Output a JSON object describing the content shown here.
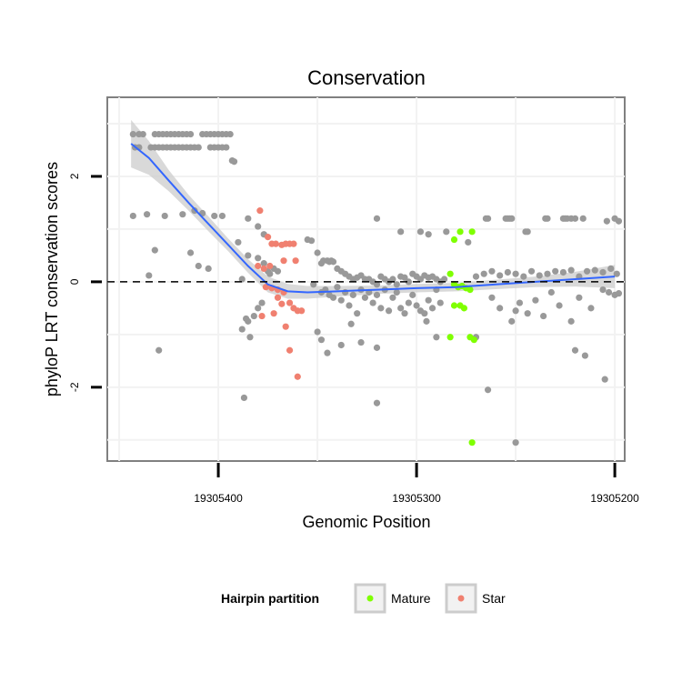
{
  "chart_data": {
    "type": "scatter",
    "title": "Conservation",
    "xlabel": "Genomic Position",
    "ylabel": "phyloP LRT conservation scores",
    "x_reversed": true,
    "xlim": [
      19305456,
      19305195
    ],
    "ylim": [
      -3.4,
      3.5
    ],
    "x_ticks": [
      19305400,
      19305300,
      19305200
    ],
    "y_ticks": [
      -2,
      0,
      2
    ],
    "grid": true,
    "reference_line_y": 0,
    "legend": {
      "title": "Hairpin partition",
      "placement": "bottom",
      "entries": [
        {
          "label": "Mature",
          "color": "#7fff00"
        },
        {
          "label": "Star",
          "color": "#f08070"
        }
      ]
    },
    "colors": {
      "other": "#999999",
      "mature": "#7fff00",
      "star": "#f08070",
      "smooth_line": "#3366ff",
      "ribbon": "#cccccc"
    },
    "series": [
      {
        "group": "other",
        "points": [
          [
            19305443,
            2.8
          ],
          [
            19305440,
            2.8
          ],
          [
            19305438,
            2.8
          ],
          [
            19305432,
            2.8
          ],
          [
            19305430,
            2.8
          ],
          [
            19305428,
            2.8
          ],
          [
            19305426,
            2.8
          ],
          [
            19305424,
            2.8
          ],
          [
            19305422,
            2.8
          ],
          [
            19305420,
            2.8
          ],
          [
            19305418,
            2.8
          ],
          [
            19305416,
            2.8
          ],
          [
            19305414,
            2.8
          ],
          [
            19305408,
            2.8
          ],
          [
            19305406,
            2.8
          ],
          [
            19305404,
            2.8
          ],
          [
            19305402,
            2.8
          ],
          [
            19305400,
            2.8
          ],
          [
            19305398,
            2.8
          ],
          [
            19305396,
            2.8
          ],
          [
            19305394,
            2.8
          ],
          [
            19305442,
            2.55
          ],
          [
            19305440,
            2.55
          ],
          [
            19305434,
            2.55
          ],
          [
            19305432,
            2.55
          ],
          [
            19305430,
            2.55
          ],
          [
            19305428,
            2.55
          ],
          [
            19305426,
            2.55
          ],
          [
            19305424,
            2.55
          ],
          [
            19305422,
            2.55
          ],
          [
            19305420,
            2.55
          ],
          [
            19305418,
            2.55
          ],
          [
            19305416,
            2.55
          ],
          [
            19305414,
            2.55
          ],
          [
            19305412,
            2.55
          ],
          [
            19305410,
            2.55
          ],
          [
            19305404,
            2.55
          ],
          [
            19305402,
            2.55
          ],
          [
            19305400,
            2.55
          ],
          [
            19305398,
            2.55
          ],
          [
            19305396,
            2.55
          ],
          [
            19305393,
            2.3
          ],
          [
            19305392,
            2.28
          ],
          [
            19305443,
            1.25
          ],
          [
            19305436,
            1.28
          ],
          [
            19305427,
            1.25
          ],
          [
            19305418,
            1.28
          ],
          [
            19305412,
            1.35
          ],
          [
            19305408,
            1.3
          ],
          [
            19305402,
            1.25
          ],
          [
            19305398,
            1.25
          ],
          [
            19305385,
            1.2
          ],
          [
            19305380,
            1.05
          ],
          [
            19305377,
            0.9
          ],
          [
            19305432,
            0.6
          ],
          [
            19305414,
            0.55
          ],
          [
            19305390,
            0.75
          ],
          [
            19305385,
            0.5
          ],
          [
            19305380,
            0.45
          ],
          [
            19305377,
            0.35
          ],
          [
            19305375,
            0.2
          ],
          [
            19305374,
            0.15
          ],
          [
            19305410,
            0.3
          ],
          [
            19305405,
            0.25
          ],
          [
            19305435,
            0.12
          ],
          [
            19305372,
            0.25
          ],
          [
            19305370,
            0.2
          ],
          [
            19305388,
            0.05
          ],
          [
            19305388,
            -0.9
          ],
          [
            19305386,
            -0.7
          ],
          [
            19305385,
            -0.75
          ],
          [
            19305384,
            -1.05
          ],
          [
            19305382,
            -0.65
          ],
          [
            19305380,
            -0.5
          ],
          [
            19305378,
            -0.4
          ],
          [
            19305430,
            -1.3
          ],
          [
            19305387,
            -2.2
          ],
          [
            19305355,
            0.8
          ],
          [
            19305353,
            0.78
          ],
          [
            19305350,
            0.55
          ],
          [
            19305348,
            0.35
          ],
          [
            19305347,
            0.4
          ],
          [
            19305345,
            0.4
          ],
          [
            19305344,
            0.38
          ],
          [
            19305343,
            0.4
          ],
          [
            19305342,
            0.38
          ],
          [
            19305340,
            0.25
          ],
          [
            19305338,
            0.2
          ],
          [
            19305336,
            0.15
          ],
          [
            19305334,
            0.1
          ],
          [
            19305332,
            0.05
          ],
          [
            19305330,
            0.08
          ],
          [
            19305328,
            0.12
          ],
          [
            19305326,
            0.05
          ],
          [
            19305324,
            0.05
          ],
          [
            19305322,
            0.0
          ],
          [
            19305320,
            -0.05
          ],
          [
            19305318,
            0.1
          ],
          [
            19305316,
            0.05
          ],
          [
            19305314,
            0.0
          ],
          [
            19305312,
            0.05
          ],
          [
            19305310,
            -0.05
          ],
          [
            19305308,
            0.1
          ],
          [
            19305306,
            0.08
          ],
          [
            19305304,
            0.0
          ],
          [
            19305302,
            0.15
          ],
          [
            19305300,
            0.1
          ],
          [
            19305298,
            0.05
          ],
          [
            19305296,
            0.12
          ],
          [
            19305294,
            0.08
          ],
          [
            19305292,
            0.1
          ],
          [
            19305290,
            0.05
          ],
          [
            19305288,
            0.0
          ],
          [
            19305286,
            0.05
          ],
          [
            19305320,
            1.2
          ],
          [
            19305308,
            0.95
          ],
          [
            19305298,
            0.95
          ],
          [
            19305294,
            0.9
          ],
          [
            19305285,
            0.95
          ],
          [
            19305274,
            0.75
          ],
          [
            19305352,
            -0.05
          ],
          [
            19305348,
            -0.2
          ],
          [
            19305346,
            -0.15
          ],
          [
            19305344,
            -0.25
          ],
          [
            19305342,
            -0.3
          ],
          [
            19305340,
            -0.1
          ],
          [
            19305338,
            -0.35
          ],
          [
            19305336,
            -0.2
          ],
          [
            19305334,
            -0.45
          ],
          [
            19305332,
            -0.25
          ],
          [
            19305330,
            -0.6
          ],
          [
            19305328,
            -0.15
          ],
          [
            19305326,
            -0.3
          ],
          [
            19305324,
            -0.2
          ],
          [
            19305322,
            -0.4
          ],
          [
            19305320,
            -0.25
          ],
          [
            19305318,
            -0.5
          ],
          [
            19305316,
            -0.15
          ],
          [
            19305314,
            -0.55
          ],
          [
            19305312,
            -0.3
          ],
          [
            19305310,
            -0.2
          ],
          [
            19305308,
            -0.5
          ],
          [
            19305306,
            -0.6
          ],
          [
            19305304,
            -0.4
          ],
          [
            19305302,
            -0.25
          ],
          [
            19305300,
            -0.45
          ],
          [
            19305298,
            -0.55
          ],
          [
            19305296,
            -0.6
          ],
          [
            19305294,
            -0.35
          ],
          [
            19305292,
            -0.5
          ],
          [
            19305290,
            -0.15
          ],
          [
            19305288,
            -0.4
          ],
          [
            19305350,
            -0.95
          ],
          [
            19305348,
            -1.1
          ],
          [
            19305345,
            -1.35
          ],
          [
            19305338,
            -1.2
          ],
          [
            19305333,
            -0.8
          ],
          [
            19305328,
            -1.15
          ],
          [
            19305320,
            -1.25
          ],
          [
            19305295,
            -0.75
          ],
          [
            19305290,
            -1.05
          ],
          [
            19305320,
            -2.3
          ],
          [
            19305265,
            1.2
          ],
          [
            19305264,
            1.2
          ],
          [
            19305255,
            1.2
          ],
          [
            19305254,
            1.2
          ],
          [
            19305253,
            1.2
          ],
          [
            19305252,
            1.2
          ],
          [
            19305245,
            0.95
          ],
          [
            19305244,
            0.95
          ],
          [
            19305235,
            1.2
          ],
          [
            19305234,
            1.2
          ],
          [
            19305226,
            1.2
          ],
          [
            19305225,
            1.2
          ],
          [
            19305224,
            1.2
          ],
          [
            19305222,
            1.2
          ],
          [
            19305220,
            1.2
          ],
          [
            19305216,
            1.2
          ],
          [
            19305204,
            1.15
          ],
          [
            19305200,
            1.2
          ],
          [
            19305198,
            1.15
          ],
          [
            19305270,
            0.1
          ],
          [
            19305266,
            0.15
          ],
          [
            19305262,
            0.2
          ],
          [
            19305258,
            0.12
          ],
          [
            19305254,
            0.18
          ],
          [
            19305250,
            0.15
          ],
          [
            19305246,
            0.1
          ],
          [
            19305242,
            0.2
          ],
          [
            19305238,
            0.12
          ],
          [
            19305234,
            0.15
          ],
          [
            19305230,
            0.2
          ],
          [
            19305226,
            0.18
          ],
          [
            19305222,
            0.22
          ],
          [
            19305218,
            0.1
          ],
          [
            19305214,
            0.2
          ],
          [
            19305210,
            0.22
          ],
          [
            19305206,
            0.18
          ],
          [
            19305202,
            0.25
          ],
          [
            19305199,
            0.15
          ],
          [
            19305262,
            -0.3
          ],
          [
            19305258,
            -0.5
          ],
          [
            19305252,
            -0.75
          ],
          [
            19305250,
            -0.55
          ],
          [
            19305248,
            -0.4
          ],
          [
            19305244,
            -0.6
          ],
          [
            19305240,
            -0.35
          ],
          [
            19305236,
            -0.65
          ],
          [
            19305232,
            -0.2
          ],
          [
            19305228,
            -0.45
          ],
          [
            19305222,
            -0.75
          ],
          [
            19305218,
            -0.3
          ],
          [
            19305212,
            -0.5
          ],
          [
            19305206,
            -0.15
          ],
          [
            19305203,
            -0.2
          ],
          [
            19305200,
            -0.25
          ],
          [
            19305198,
            -0.22
          ],
          [
            19305270,
            -1.05
          ],
          [
            19305264,
            -2.05
          ],
          [
            19305250,
            -3.05
          ],
          [
            19305220,
            -1.3
          ],
          [
            19305215,
            -1.4
          ],
          [
            19305205,
            -1.85
          ]
        ]
      },
      {
        "group": "mature",
        "points": [
          [
            19305278,
            0.95
          ],
          [
            19305272,
            0.95
          ],
          [
            19305281,
            0.8
          ],
          [
            19305283,
            0.15
          ],
          [
            19305281,
            -0.05
          ],
          [
            19305279,
            -0.1
          ],
          [
            19305277,
            -0.08
          ],
          [
            19305275,
            -0.12
          ],
          [
            19305273,
            -0.15
          ],
          [
            19305281,
            -0.45
          ],
          [
            19305278,
            -0.45
          ],
          [
            19305276,
            -0.5
          ],
          [
            19305283,
            -1.05
          ],
          [
            19305273,
            -1.05
          ],
          [
            19305271,
            -1.1
          ],
          [
            19305272,
            -3.05
          ]
        ]
      },
      {
        "group": "star",
        "points": [
          [
            19305379,
            1.35
          ],
          [
            19305375,
            0.85
          ],
          [
            19305373,
            0.72
          ],
          [
            19305371,
            0.72
          ],
          [
            19305368,
            0.7
          ],
          [
            19305366,
            0.72
          ],
          [
            19305364,
            0.72
          ],
          [
            19305362,
            0.72
          ],
          [
            19305361,
            0.4
          ],
          [
            19305367,
            0.4
          ],
          [
            19305374,
            0.3
          ],
          [
            19305377,
            0.25
          ],
          [
            19305380,
            0.3
          ],
          [
            19305376,
            -0.1
          ],
          [
            19305373,
            -0.12
          ],
          [
            19305370,
            -0.15
          ],
          [
            19305367,
            -0.2
          ],
          [
            19305364,
            -0.4
          ],
          [
            19305362,
            -0.5
          ],
          [
            19305360,
            -0.55
          ],
          [
            19305358,
            -0.55
          ],
          [
            19305370,
            -0.3
          ],
          [
            19305368,
            -0.42
          ],
          [
            19305378,
            -0.65
          ],
          [
            19305372,
            -0.6
          ],
          [
            19305366,
            -0.85
          ],
          [
            19305364,
            -1.3
          ],
          [
            19305360,
            -1.8
          ]
        ]
      }
    ],
    "smooth_line": [
      [
        19305444,
        2.62
      ],
      [
        19305435,
        2.35
      ],
      [
        19305425,
        1.92
      ],
      [
        19305415,
        1.5
      ],
      [
        19305405,
        1.1
      ],
      [
        19305395,
        0.7
      ],
      [
        19305385,
        0.3
      ],
      [
        19305375,
        -0.05
      ],
      [
        19305365,
        -0.18
      ],
      [
        19305355,
        -0.2
      ],
      [
        19305340,
        -0.18
      ],
      [
        19305320,
        -0.15
      ],
      [
        19305300,
        -0.12
      ],
      [
        19305280,
        -0.1
      ],
      [
        19305260,
        -0.05
      ],
      [
        19305240,
        0.0
      ],
      [
        19305220,
        0.05
      ],
      [
        19305200,
        0.1
      ]
    ],
    "ribbon_halfwidth": [
      0.45,
      0.32,
      0.2,
      0.15,
      0.14,
      0.12,
      0.13,
      0.15,
      0.14,
      0.12,
      0.1,
      0.08,
      0.08,
      0.08,
      0.09,
      0.1,
      0.14,
      0.22
    ]
  }
}
